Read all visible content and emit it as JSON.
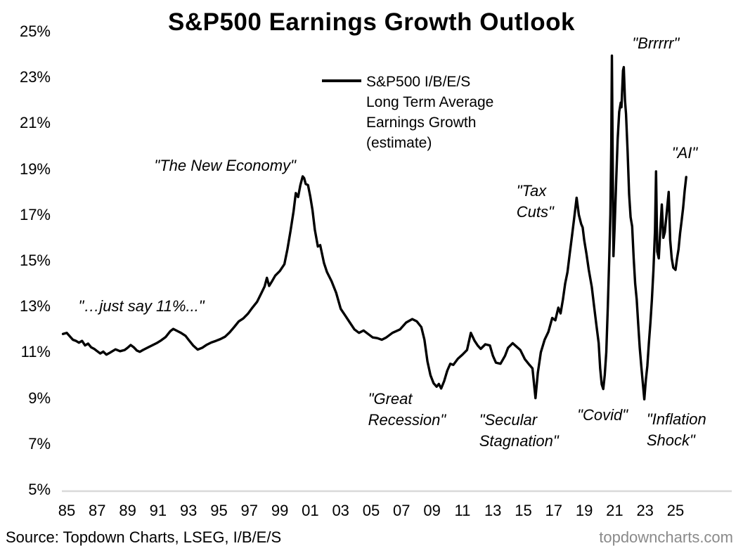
{
  "title": "S&P500 Earnings Growth Outlook",
  "legend": {
    "line1": "S&P500 I/B/E/S",
    "line2": "Long Term Average",
    "line3": "Earnings Growth",
    "line4": "(estimate)"
  },
  "source": "Source: Topdown Charts, LSEG, I/B/E/S",
  "watermark": "topdowncharts.com",
  "colors": {
    "line": "#000000",
    "axis_line": "#d9d9d9",
    "text": "#000000",
    "watermark": "#8a8a8a",
    "background": "#ffffff"
  },
  "chart_data": {
    "type": "line",
    "title": "S&P500 Earnings Growth Outlook",
    "grid": false,
    "legend_position": "top-center",
    "xlabel": "",
    "ylabel": "",
    "ylim": [
      5,
      25
    ],
    "xlim": [
      1984.5,
      2027.5
    ],
    "y_ticks": [
      {
        "value": 25,
        "label": "25%"
      },
      {
        "value": 23,
        "label": "23%"
      },
      {
        "value": 21,
        "label": "21%"
      },
      {
        "value": 19,
        "label": "19%"
      },
      {
        "value": 17,
        "label": "17%"
      },
      {
        "value": 15,
        "label": "15%"
      },
      {
        "value": 13,
        "label": "13%"
      },
      {
        "value": 11,
        "label": "11%"
      },
      {
        "value": 9,
        "label": "9%"
      },
      {
        "value": 7,
        "label": "7%"
      },
      {
        "value": 5,
        "label": "5%"
      }
    ],
    "x_ticks": [
      {
        "value": 1985,
        "label": "85"
      },
      {
        "value": 1987,
        "label": "87"
      },
      {
        "value": 1989,
        "label": "89"
      },
      {
        "value": 1991,
        "label": "91"
      },
      {
        "value": 1993,
        "label": "93"
      },
      {
        "value": 1995,
        "label": "95"
      },
      {
        "value": 1997,
        "label": "97"
      },
      {
        "value": 1999,
        "label": "99"
      },
      {
        "value": 2001,
        "label": "01"
      },
      {
        "value": 2003,
        "label": "03"
      },
      {
        "value": 2005,
        "label": "05"
      },
      {
        "value": 2007,
        "label": "07"
      },
      {
        "value": 2009,
        "label": "09"
      },
      {
        "value": 2011,
        "label": "11"
      },
      {
        "value": 2013,
        "label": "13"
      },
      {
        "value": 2015,
        "label": "15"
      },
      {
        "value": 2017,
        "label": "17"
      },
      {
        "value": 2019,
        "label": "19"
      },
      {
        "value": 2021,
        "label": "21"
      },
      {
        "value": 2023,
        "label": "23"
      },
      {
        "value": 2025,
        "label": "25"
      }
    ],
    "series": [
      {
        "name": "S&P500 I/B/E/S Long Term Average Earnings Growth (estimate)",
        "color": "#000000",
        "points": [
          [
            1984.75,
            11.8
          ],
          [
            1985.0,
            11.85
          ],
          [
            1985.2,
            11.7
          ],
          [
            1985.4,
            11.55
          ],
          [
            1985.6,
            11.5
          ],
          [
            1985.8,
            11.42
          ],
          [
            1986.0,
            11.5
          ],
          [
            1986.2,
            11.3
          ],
          [
            1986.4,
            11.38
          ],
          [
            1986.6,
            11.22
          ],
          [
            1986.8,
            11.15
          ],
          [
            1987.0,
            11.05
          ],
          [
            1987.2,
            10.95
          ],
          [
            1987.4,
            11.03
          ],
          [
            1987.6,
            10.9
          ],
          [
            1987.8,
            10.97
          ],
          [
            1988.0,
            11.05
          ],
          [
            1988.2,
            11.13
          ],
          [
            1988.5,
            11.05
          ],
          [
            1988.8,
            11.1
          ],
          [
            1989.0,
            11.2
          ],
          [
            1989.2,
            11.32
          ],
          [
            1989.4,
            11.22
          ],
          [
            1989.6,
            11.08
          ],
          [
            1989.8,
            11.02
          ],
          [
            1990.0,
            11.1
          ],
          [
            1990.3,
            11.2
          ],
          [
            1990.6,
            11.3
          ],
          [
            1990.9,
            11.4
          ],
          [
            1991.2,
            11.52
          ],
          [
            1991.5,
            11.67
          ],
          [
            1991.8,
            11.92
          ],
          [
            1992.0,
            12.02
          ],
          [
            1992.2,
            11.95
          ],
          [
            1992.5,
            11.85
          ],
          [
            1992.8,
            11.72
          ],
          [
            1993.0,
            11.55
          ],
          [
            1993.3,
            11.3
          ],
          [
            1993.6,
            11.12
          ],
          [
            1993.9,
            11.2
          ],
          [
            1994.2,
            11.33
          ],
          [
            1994.5,
            11.43
          ],
          [
            1994.8,
            11.5
          ],
          [
            1995.1,
            11.58
          ],
          [
            1995.4,
            11.68
          ],
          [
            1995.7,
            11.87
          ],
          [
            1996.0,
            12.1
          ],
          [
            1996.3,
            12.35
          ],
          [
            1996.6,
            12.48
          ],
          [
            1996.9,
            12.68
          ],
          [
            1997.2,
            12.95
          ],
          [
            1997.5,
            13.2
          ],
          [
            1997.8,
            13.6
          ],
          [
            1998.0,
            13.87
          ],
          [
            1998.15,
            14.25
          ],
          [
            1998.3,
            13.9
          ],
          [
            1998.5,
            14.12
          ],
          [
            1998.7,
            14.35
          ],
          [
            1999.0,
            14.55
          ],
          [
            1999.3,
            14.85
          ],
          [
            1999.5,
            15.5
          ],
          [
            1999.7,
            16.3
          ],
          [
            1999.9,
            17.15
          ],
          [
            2000.05,
            17.95
          ],
          [
            2000.2,
            17.78
          ],
          [
            2000.35,
            18.3
          ],
          [
            2000.5,
            18.68
          ],
          [
            2000.6,
            18.6
          ],
          [
            2000.7,
            18.35
          ],
          [
            2000.85,
            18.3
          ],
          [
            2001.0,
            17.8
          ],
          [
            2001.15,
            17.2
          ],
          [
            2001.3,
            16.35
          ],
          [
            2001.5,
            15.62
          ],
          [
            2001.65,
            15.68
          ],
          [
            2001.9,
            14.9
          ],
          [
            2002.1,
            14.5
          ],
          [
            2002.4,
            14.1
          ],
          [
            2002.7,
            13.6
          ],
          [
            2003.0,
            12.9
          ],
          [
            2003.3,
            12.6
          ],
          [
            2003.6,
            12.3
          ],
          [
            2003.9,
            12.0
          ],
          [
            2004.2,
            11.85
          ],
          [
            2004.5,
            11.95
          ],
          [
            2004.8,
            11.8
          ],
          [
            2005.1,
            11.65
          ],
          [
            2005.4,
            11.62
          ],
          [
            2005.7,
            11.55
          ],
          [
            2006.0,
            11.65
          ],
          [
            2006.4,
            11.85
          ],
          [
            2006.9,
            12.0
          ],
          [
            2007.3,
            12.3
          ],
          [
            2007.7,
            12.45
          ],
          [
            2008.0,
            12.35
          ],
          [
            2008.3,
            12.1
          ],
          [
            2008.5,
            11.55
          ],
          [
            2008.7,
            10.6
          ],
          [
            2008.9,
            10.0
          ],
          [
            2009.1,
            9.65
          ],
          [
            2009.3,
            9.5
          ],
          [
            2009.45,
            9.62
          ],
          [
            2009.6,
            9.42
          ],
          [
            2009.8,
            9.75
          ],
          [
            2010.0,
            10.2
          ],
          [
            2010.2,
            10.5
          ],
          [
            2010.4,
            10.45
          ],
          [
            2010.7,
            10.72
          ],
          [
            2011.0,
            10.9
          ],
          [
            2011.3,
            11.1
          ],
          [
            2011.55,
            11.85
          ],
          [
            2011.8,
            11.5
          ],
          [
            2012.0,
            11.3
          ],
          [
            2012.2,
            11.15
          ],
          [
            2012.5,
            11.35
          ],
          [
            2012.8,
            11.3
          ],
          [
            2013.0,
            10.85
          ],
          [
            2013.2,
            10.55
          ],
          [
            2013.5,
            10.5
          ],
          [
            2013.8,
            10.85
          ],
          [
            2014.0,
            11.2
          ],
          [
            2014.3,
            11.4
          ],
          [
            2014.5,
            11.28
          ],
          [
            2014.8,
            11.1
          ],
          [
            2015.1,
            10.7
          ],
          [
            2015.4,
            10.45
          ],
          [
            2015.6,
            10.3
          ],
          [
            2015.8,
            9.0
          ],
          [
            2015.95,
            10.1
          ],
          [
            2016.15,
            11.0
          ],
          [
            2016.4,
            11.55
          ],
          [
            2016.65,
            11.9
          ],
          [
            2016.9,
            12.5
          ],
          [
            2017.1,
            12.4
          ],
          [
            2017.3,
            12.95
          ],
          [
            2017.45,
            12.7
          ],
          [
            2017.6,
            13.3
          ],
          [
            2017.75,
            14.0
          ],
          [
            2017.9,
            14.5
          ],
          [
            2018.05,
            15.3
          ],
          [
            2018.2,
            16.1
          ],
          [
            2018.35,
            16.9
          ],
          [
            2018.5,
            17.75
          ],
          [
            2018.65,
            17.0
          ],
          [
            2018.8,
            16.6
          ],
          [
            2018.9,
            16.45
          ],
          [
            2019.0,
            15.9
          ],
          [
            2019.15,
            15.3
          ],
          [
            2019.3,
            14.6
          ],
          [
            2019.5,
            13.85
          ],
          [
            2019.65,
            13.0
          ],
          [
            2019.8,
            12.2
          ],
          [
            2019.95,
            11.4
          ],
          [
            2020.05,
            10.3
          ],
          [
            2020.15,
            9.6
          ],
          [
            2020.25,
            9.4
          ],
          [
            2020.35,
            10.0
          ],
          [
            2020.45,
            11.0
          ],
          [
            2020.55,
            13.0
          ],
          [
            2020.65,
            15.2
          ],
          [
            2020.72,
            17.0
          ],
          [
            2020.78,
            20.0
          ],
          [
            2020.82,
            23.95
          ],
          [
            2020.87,
            19.5
          ],
          [
            2020.92,
            15.2
          ],
          [
            2021.0,
            16.5
          ],
          [
            2021.1,
            18.5
          ],
          [
            2021.2,
            20.3
          ],
          [
            2021.3,
            21.5
          ],
          [
            2021.4,
            21.9
          ],
          [
            2021.45,
            21.7
          ],
          [
            2021.55,
            23.3
          ],
          [
            2021.6,
            23.45
          ],
          [
            2021.68,
            22.0
          ],
          [
            2021.75,
            21.4
          ],
          [
            2021.85,
            19.8
          ],
          [
            2021.95,
            17.9
          ],
          [
            2022.05,
            16.9
          ],
          [
            2022.15,
            16.5
          ],
          [
            2022.25,
            15.1
          ],
          [
            2022.35,
            14.0
          ],
          [
            2022.45,
            13.3
          ],
          [
            2022.55,
            12.2
          ],
          [
            2022.65,
            11.2
          ],
          [
            2022.75,
            10.4
          ],
          [
            2022.85,
            9.65
          ],
          [
            2022.95,
            8.95
          ],
          [
            2023.05,
            9.8
          ],
          [
            2023.15,
            10.4
          ],
          [
            2023.25,
            11.4
          ],
          [
            2023.35,
            12.3
          ],
          [
            2023.45,
            13.3
          ],
          [
            2023.55,
            14.6
          ],
          [
            2023.65,
            16.3
          ],
          [
            2023.72,
            18.9
          ],
          [
            2023.8,
            15.4
          ],
          [
            2023.9,
            15.1
          ],
          [
            2024.0,
            16.3
          ],
          [
            2024.1,
            17.45
          ],
          [
            2024.2,
            16.0
          ],
          [
            2024.3,
            16.25
          ],
          [
            2024.45,
            17.3
          ],
          [
            2024.55,
            18.0
          ],
          [
            2024.65,
            15.9
          ],
          [
            2024.75,
            15.1
          ],
          [
            2024.85,
            14.7
          ],
          [
            2025.0,
            14.6
          ],
          [
            2025.1,
            15.1
          ],
          [
            2025.2,
            15.5
          ],
          [
            2025.3,
            16.2
          ],
          [
            2025.4,
            16.75
          ],
          [
            2025.5,
            17.3
          ],
          [
            2025.6,
            18.05
          ],
          [
            2025.7,
            18.65
          ]
        ]
      }
    ],
    "annotations": [
      {
        "id": "new-economy",
        "lines": [
          "\"The New Economy\""
        ],
        "x": 1995.4,
        "y": 19.15,
        "align": "center"
      },
      {
        "id": "just-say-11",
        "lines": [
          "\"…just say 11%...\""
        ],
        "x": 1989.9,
        "y": 13.0,
        "align": "center"
      },
      {
        "id": "great-recession",
        "lines": [
          "\"Great",
          "Recession\""
        ],
        "x": 2004.8,
        "y": 8.96,
        "align": "left"
      },
      {
        "id": "secular-stagnation",
        "lines": [
          "\"Secular",
          "Stagnation\""
        ],
        "x": 2012.1,
        "y": 8.04,
        "align": "left"
      },
      {
        "id": "tax-cuts",
        "lines": [
          "\"Tax",
          "Cuts\""
        ],
        "x": 2014.55,
        "y": 18.05,
        "align": "left"
      },
      {
        "id": "covid",
        "lines": [
          "\"Covid\""
        ],
        "x": 2020.2,
        "y": 8.25,
        "align": "center"
      },
      {
        "id": "brrrrr",
        "lines": [
          "\"Brrrrr\""
        ],
        "x": 2023.7,
        "y": 24.48,
        "align": "center"
      },
      {
        "id": "ai",
        "lines": [
          "\"AI\""
        ],
        "x": 2025.6,
        "y": 19.7,
        "align": "center"
      },
      {
        "id": "inflation-shock",
        "lines": [
          "\"Inflation",
          "Shock\""
        ],
        "x": 2023.1,
        "y": 8.07,
        "align": "left"
      }
    ]
  }
}
